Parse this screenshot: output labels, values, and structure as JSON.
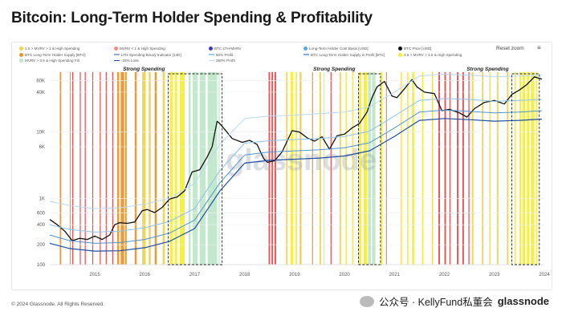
{
  "header": {
    "title": "Bitcoin: Long-Term Holder Spending & Profitability"
  },
  "toolbar": {
    "reset_label": "Reset zoom",
    "menu_icon": "hamburger-menu-icon"
  },
  "legend": [
    {
      "label": "1.5 > MVRV > 1 & High Spending",
      "color": "#f2d24a",
      "kind": "dot"
    },
    {
      "label": "MVRV < 1 & High Spending",
      "color": "#f28b82",
      "kind": "dot"
    },
    {
      "label": "BTC LTH-MVRV",
      "color": "#3b3bbf",
      "kind": "dot"
    },
    {
      "label": "Long-Term Holder Cost Basis [USD]",
      "color": "#5aa7d9",
      "kind": "dot"
    },
    {
      "label": "BTC Price [USD]",
      "color": "#111111",
      "kind": "dot"
    },
    {
      "label": "BTC Long-Term Holder Supply [BTC]",
      "color": "#e8962e",
      "kind": "dot"
    },
    {
      "label": "LTH-Spending Binary Indicator [14D]",
      "color": "#9ad",
      "kind": "line"
    },
    {
      "label": "50% Profit",
      "color": "#9cc9ee",
      "kind": "line"
    },
    {
      "label": "BTC Long-Term Holder Supply in Profit [BTC]",
      "color": "#7fa9d8",
      "kind": "line"
    },
    {
      "label": "3.5 > MVRV > 1.5 & High Spending",
      "color": "#f4ef3a",
      "kind": "dot"
    },
    {
      "label": "MVRV > 3.5 & High Spending Fill",
      "color": "#bfe8c8",
      "kind": "dot"
    },
    {
      "label": "-25% Loss",
      "color": "#1e4fa6",
      "kind": "line"
    },
    {
      "label": "250% Profit",
      "color": "#c8dff3",
      "kind": "line"
    }
  ],
  "annotations": [
    "Strong Spending",
    "Strong Spending",
    "Strong Spending"
  ],
  "chart_data": {
    "type": "line",
    "title": "Bitcoin: Long-Term Holder Spending & Profitability",
    "x_ticks": [
      "2015",
      "2016",
      "2017",
      "2018",
      "2019",
      "2020",
      "2021",
      "2022",
      "2023",
      "2024"
    ],
    "y_scale": "log",
    "y_ticks": [
      "100",
      "200",
      "400",
      "600",
      "1K",
      "6K",
      "10K",
      "40K",
      "60K"
    ],
    "ylim": [
      100,
      80000
    ],
    "xlim": [
      2014.6,
      2024.5
    ],
    "series": [
      {
        "name": "BTC Price [USD]",
        "color": "#111111",
        "x": [
          2014.6,
          2014.75,
          2014.9,
          2015.05,
          2015.2,
          2015.35,
          2015.5,
          2015.65,
          2015.8,
          2015.9,
          2016.0,
          2016.15,
          2016.3,
          2016.45,
          2016.55,
          2016.7,
          2016.85,
          2017.0,
          2017.15,
          2017.3,
          2017.45,
          2017.6,
          2017.75,
          2017.85,
          2017.95,
          2018.0,
          2018.1,
          2018.25,
          2018.45,
          2018.6,
          2018.75,
          2018.88,
          2018.96,
          2019.1,
          2019.25,
          2019.45,
          2019.6,
          2019.75,
          2019.9,
          2020.05,
          2020.2,
          2020.35,
          2020.5,
          2020.65,
          2020.8,
          2020.95,
          2021.05,
          2021.15,
          2021.3,
          2021.45,
          2021.55,
          2021.7,
          2021.85,
          2021.95,
          2022.1,
          2022.3,
          2022.45,
          2022.6,
          2022.8,
          2022.95,
          2023.1,
          2023.3,
          2023.5,
          2023.7,
          2023.85,
          2024.0,
          2024.15,
          2024.3,
          2024.45
        ],
        "values": [
          480,
          400,
          320,
          230,
          250,
          240,
          270,
          240,
          280,
          400,
          430,
          420,
          440,
          650,
          680,
          610,
          730,
          980,
          1050,
          1300,
          2500,
          2700,
          4200,
          6000,
          14500,
          13500,
          11000,
          8000,
          7000,
          7500,
          6500,
          4000,
          3500,
          3700,
          5000,
          10500,
          10000,
          8200,
          7300,
          8500,
          5500,
          8800,
          9300,
          11500,
          13500,
          20000,
          33000,
          48000,
          58000,
          35000,
          33000,
          45000,
          62000,
          48000,
          40000,
          38000,
          21000,
          22000,
          19500,
          16800,
          22500,
          28000,
          30000,
          26500,
          37000,
          43000,
          52000,
          68000,
          63000
        ]
      },
      {
        "name": "250% Profit",
        "color": "#bcd9f2",
        "x": [
          2014.6,
          2015.0,
          2015.5,
          2016.0,
          2016.5,
          2017.0,
          2017.5,
          2018.0,
          2018.5,
          2019.0,
          2019.5,
          2020.0,
          2020.5,
          2021.0,
          2021.5,
          2022.0,
          2022.5,
          2023.0,
          2023.5,
          2024.0,
          2024.45
        ],
        "values": [
          900,
          780,
          700,
          720,
          820,
          1000,
          1700,
          6500,
          16000,
          17500,
          18000,
          19000,
          20000,
          24000,
          40000,
          70000,
          75000,
          72000,
          68000,
          70000,
          72000
        ]
      },
      {
        "name": "50% Profit",
        "color": "#8ec2ea",
        "x": [
          2014.6,
          2015.0,
          2015.5,
          2016.0,
          2016.5,
          2017.0,
          2017.5,
          2018.0,
          2018.5,
          2019.0,
          2019.5,
          2020.0,
          2020.5,
          2021.0,
          2021.5,
          2022.0,
          2022.5,
          2023.0,
          2023.5,
          2024.0,
          2024.45
        ],
        "values": [
          400,
          340,
          310,
          320,
          360,
          450,
          700,
          2600,
          6800,
          7400,
          7700,
          8000,
          8600,
          10300,
          17500,
          30000,
          32000,
          31000,
          29000,
          30000,
          31000
        ]
      },
      {
        "name": "Long-Term Holder Cost Basis [USD]",
        "color": "#4f95cf",
        "x": [
          2014.6,
          2015.0,
          2015.5,
          2016.0,
          2016.5,
          2017.0,
          2017.5,
          2018.0,
          2018.5,
          2019.0,
          2019.5,
          2020.0,
          2020.5,
          2021.0,
          2021.5,
          2022.0,
          2022.5,
          2023.0,
          2023.5,
          2024.0,
          2024.45
        ],
        "values": [
          280,
          230,
          210,
          215,
          240,
          300,
          470,
          1700,
          4500,
          5000,
          5200,
          5400,
          5800,
          6900,
          11500,
          20000,
          21500,
          20500,
          19500,
          20000,
          21000
        ]
      },
      {
        "name": "-25% Loss",
        "color": "#1e4fa6",
        "x": [
          2014.6,
          2015.0,
          2015.5,
          2016.0,
          2016.5,
          2017.0,
          2017.5,
          2018.0,
          2018.5,
          2019.0,
          2019.5,
          2020.0,
          2020.5,
          2021.0,
          2021.5,
          2022.0,
          2022.5,
          2023.0,
          2023.5,
          2024.0,
          2024.45
        ],
        "values": [
          210,
          175,
          160,
          162,
          180,
          225,
          350,
          1280,
          3400,
          3750,
          3900,
          4050,
          4350,
          5200,
          8600,
          15000,
          16000,
          15400,
          14600,
          15000,
          15700
        ]
      }
    ],
    "spending_bands": [
      {
        "x0": 2014.8,
        "x1": 2014.83,
        "color": "#e8962e"
      },
      {
        "x0": 2015.0,
        "x1": 2015.02,
        "color": "#e8962e"
      },
      {
        "x0": 2015.05,
        "x1": 2015.07,
        "color": "#ef4444"
      },
      {
        "x0": 2015.2,
        "x1": 2015.22,
        "color": "#ef4444"
      },
      {
        "x0": 2015.3,
        "x1": 2015.32,
        "color": "#ef4444"
      },
      {
        "x0": 2015.45,
        "x1": 2015.47,
        "color": "#ef4444"
      },
      {
        "x0": 2015.6,
        "x1": 2015.62,
        "color": "#ef4444"
      },
      {
        "x0": 2015.72,
        "x1": 2015.74,
        "color": "#ef4444"
      },
      {
        "x0": 2015.85,
        "x1": 2015.87,
        "color": "#ef4444"
      },
      {
        "x0": 2015.95,
        "x1": 2015.99,
        "color": "#e8962e"
      },
      {
        "x0": 2016.02,
        "x1": 2016.09,
        "color": "#e8962e"
      },
      {
        "x0": 2016.11,
        "x1": 2016.14,
        "color": "#e8962e"
      },
      {
        "x0": 2016.3,
        "x1": 2016.34,
        "color": "#e8962e"
      },
      {
        "x0": 2016.45,
        "x1": 2016.52,
        "color": "#f2d24a"
      },
      {
        "x0": 2016.58,
        "x1": 2016.62,
        "color": "#f2d24a"
      },
      {
        "x0": 2016.7,
        "x1": 2016.74,
        "color": "#e8962e"
      },
      {
        "x0": 2016.86,
        "x1": 2016.9,
        "color": "#f2d24a"
      },
      {
        "x0": 2017.0,
        "x1": 2017.06,
        "color": "#f4ef3a"
      },
      {
        "x0": 2017.1,
        "x1": 2017.15,
        "color": "#f4ef3a"
      },
      {
        "x0": 2017.2,
        "x1": 2017.3,
        "color": "#f4ef3a"
      },
      {
        "x0": 2017.38,
        "x1": 2017.42,
        "color": "#bfe8c8"
      },
      {
        "x0": 2017.46,
        "x1": 2017.56,
        "color": "#bfe8c8"
      },
      {
        "x0": 2017.6,
        "x1": 2017.72,
        "color": "#bfe8c8"
      },
      {
        "x0": 2017.76,
        "x1": 2017.95,
        "color": "#bfe8c8"
      },
      {
        "x0": 2017.98,
        "x1": 2018.0,
        "color": "#bfe8c8"
      },
      {
        "x0": 2018.98,
        "x1": 2019.01,
        "color": "#ef4444"
      },
      {
        "x0": 2019.04,
        "x1": 2019.07,
        "color": "#ef4444"
      },
      {
        "x0": 2019.1,
        "x1": 2019.13,
        "color": "#ef4444"
      },
      {
        "x0": 2019.33,
        "x1": 2019.36,
        "color": "#f2d24a"
      },
      {
        "x0": 2019.42,
        "x1": 2019.47,
        "color": "#f4ef3a"
      },
      {
        "x0": 2019.52,
        "x1": 2019.55,
        "color": "#f4ef3a"
      },
      {
        "x0": 2019.6,
        "x1": 2019.64,
        "color": "#f2d24a"
      },
      {
        "x0": 2019.85,
        "x1": 2019.87,
        "color": "#e8962e"
      },
      {
        "x0": 2020.0,
        "x1": 2020.03,
        "color": "#f2d24a"
      },
      {
        "x0": 2020.08,
        "x1": 2020.1,
        "color": "#f4ef3a"
      },
      {
        "x0": 2020.22,
        "x1": 2020.24,
        "color": "#ef4444"
      },
      {
        "x0": 2020.4,
        "x1": 2020.43,
        "color": "#f2d24a"
      },
      {
        "x0": 2020.52,
        "x1": 2020.55,
        "color": "#f4ef3a"
      },
      {
        "x0": 2020.65,
        "x1": 2020.68,
        "color": "#f4ef3a"
      },
      {
        "x0": 2020.78,
        "x1": 2020.84,
        "color": "#f4ef3a"
      },
      {
        "x0": 2020.88,
        "x1": 2020.95,
        "color": "#f4ef3a"
      },
      {
        "x0": 2020.97,
        "x1": 2021.03,
        "color": "#bfe8c8"
      },
      {
        "x0": 2021.05,
        "x1": 2021.12,
        "color": "#bfe8c8"
      },
      {
        "x0": 2021.22,
        "x1": 2021.26,
        "color": "#f4ef3a"
      },
      {
        "x0": 2021.33,
        "x1": 2021.35,
        "color": "#e8962e"
      },
      {
        "x0": 2021.62,
        "x1": 2021.65,
        "color": "#f4ef3a"
      },
      {
        "x0": 2021.75,
        "x1": 2021.78,
        "color": "#f4ef3a"
      },
      {
        "x0": 2021.85,
        "x1": 2021.9,
        "color": "#f4ef3a"
      },
      {
        "x0": 2022.05,
        "x1": 2022.08,
        "color": "#f4ef3a"
      },
      {
        "x0": 2022.25,
        "x1": 2022.27,
        "color": "#f2d24a"
      },
      {
        "x0": 2022.38,
        "x1": 2022.41,
        "color": "#ef4444"
      },
      {
        "x0": 2022.5,
        "x1": 2022.53,
        "color": "#ef4444"
      },
      {
        "x0": 2022.6,
        "x1": 2022.62,
        "color": "#ef4444"
      },
      {
        "x0": 2022.75,
        "x1": 2022.78,
        "color": "#ef4444"
      },
      {
        "x0": 2022.86,
        "x1": 2022.89,
        "color": "#ef4444"
      },
      {
        "x0": 2022.98,
        "x1": 2023.0,
        "color": "#ef4444"
      },
      {
        "x0": 2023.05,
        "x1": 2023.08,
        "color": "#f2d24a"
      },
      {
        "x0": 2023.25,
        "x1": 2023.28,
        "color": "#f2d24a"
      },
      {
        "x0": 2023.4,
        "x1": 2023.42,
        "color": "#f2d24a"
      },
      {
        "x0": 2023.55,
        "x1": 2023.58,
        "color": "#f2d24a"
      },
      {
        "x0": 2023.75,
        "x1": 2023.78,
        "color": "#f2d24a"
      },
      {
        "x0": 2023.9,
        "x1": 2023.93,
        "color": "#f4ef3a"
      },
      {
        "x0": 2024.0,
        "x1": 2024.04,
        "color": "#f4ef3a"
      },
      {
        "x0": 2024.06,
        "x1": 2024.12,
        "color": "#f4ef3a"
      },
      {
        "x0": 2024.15,
        "x1": 2024.2,
        "color": "#f4ef3a"
      },
      {
        "x0": 2024.23,
        "x1": 2024.3,
        "color": "#f4ef3a"
      },
      {
        "x0": 2024.33,
        "x1": 2024.36,
        "color": "#f4ef3a"
      }
    ],
    "strong_spending_boxes": [
      {
        "x0": 2016.97,
        "x1": 2018.05,
        "label": "Strong Spending"
      },
      {
        "x0": 2020.78,
        "x1": 2021.22,
        "label": "Strong Spending"
      },
      {
        "x0": 2023.85,
        "x1": 2024.4,
        "label": "Strong Spending"
      }
    ]
  },
  "watermark": "glassnode",
  "footer": {
    "copyright": "© 2024 Glassnode. All Rights Reserved.",
    "wechat": "公众号 · KellyFund私董会",
    "brand": "glassnode"
  }
}
